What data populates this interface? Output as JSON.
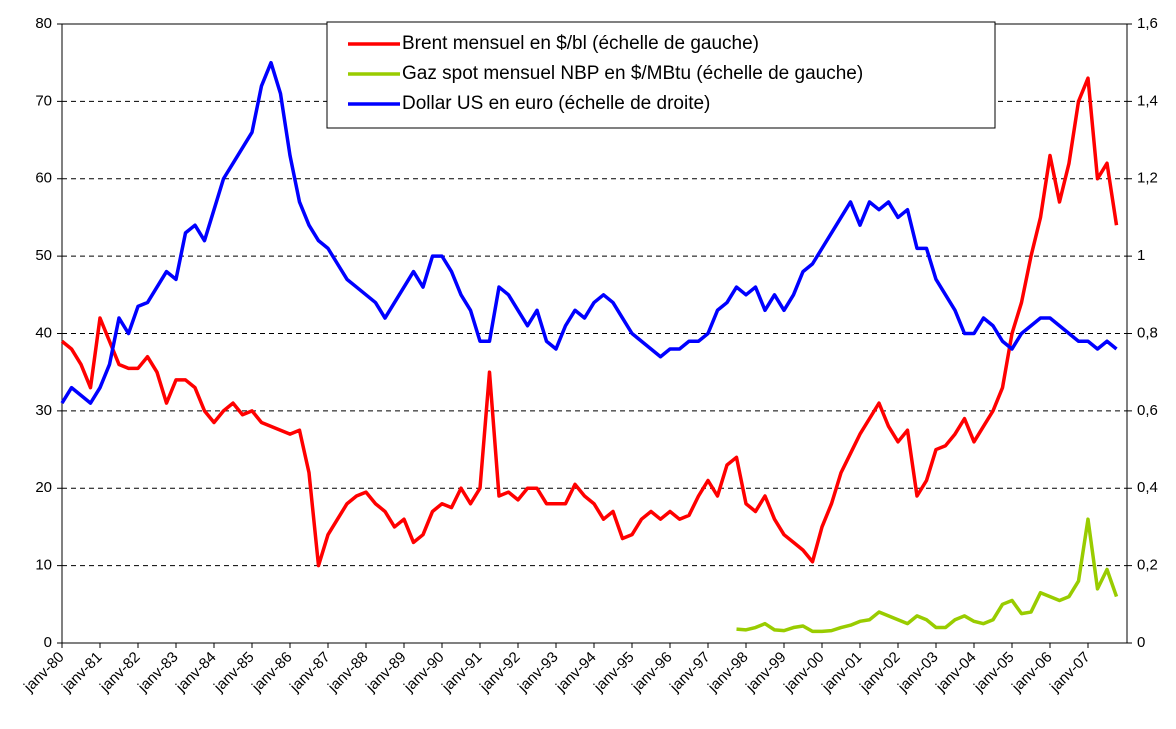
{
  "chart_data": {
    "type": "line",
    "categories": [
      "janv-80",
      null,
      null,
      null,
      "janv-81",
      null,
      null,
      null,
      "janv-82",
      null,
      null,
      null,
      "janv-83",
      null,
      null,
      null,
      "janv-84",
      null,
      null,
      null,
      "janv-85",
      null,
      null,
      null,
      "janv-86",
      null,
      null,
      null,
      "janv-87",
      null,
      null,
      null,
      "janv-88",
      null,
      null,
      null,
      "janv-89",
      null,
      null,
      null,
      "janv-90",
      null,
      null,
      null,
      "janv-91",
      null,
      null,
      null,
      "janv-92",
      null,
      null,
      null,
      "janv-93",
      null,
      null,
      null,
      "janv-94",
      null,
      null,
      null,
      "janv-95",
      null,
      null,
      null,
      "janv-96",
      null,
      null,
      null,
      "janv-97",
      null,
      null,
      null,
      "janv-98",
      null,
      null,
      null,
      "janv-99",
      null,
      null,
      null,
      "janv-00",
      null,
      null,
      null,
      "janv-01",
      null,
      null,
      null,
      "janv-02",
      null,
      null,
      null,
      "janv-03",
      null,
      null,
      null,
      "janv-04",
      null,
      null,
      null,
      "janv-05",
      null,
      null,
      null,
      "janv-06",
      null,
      null,
      null,
      "janv-07",
      null,
      null,
      null
    ],
    "series": [
      {
        "name": "Brent mensuel en $/bl (échelle de gauche)",
        "color": "#ff0000",
        "axis": "y",
        "values": [
          39,
          38,
          36,
          33,
          42,
          39,
          36,
          35.5,
          35.5,
          37,
          35,
          31,
          34,
          34,
          33,
          30,
          28.5,
          30,
          31,
          29.5,
          30,
          28.5,
          28,
          27.5,
          27,
          27.5,
          22,
          10,
          14,
          16,
          18,
          19,
          19.5,
          18,
          17,
          15,
          16,
          13,
          14,
          17,
          18,
          17.5,
          20,
          18,
          20,
          35,
          19,
          19.5,
          18.5,
          20,
          20,
          18,
          18,
          18,
          20.5,
          19,
          18,
          16,
          17,
          13.5,
          14,
          16,
          17,
          16,
          17,
          16,
          16.5,
          19,
          21,
          19,
          23,
          24,
          18,
          17,
          19,
          16,
          14,
          13,
          12,
          10.5,
          15,
          18,
          22,
          24.5,
          27,
          29,
          31,
          28,
          26,
          27.5,
          19,
          21,
          25,
          25.5,
          27,
          29,
          26,
          28,
          30,
          33,
          40,
          44,
          50,
          55,
          63,
          57,
          62,
          70,
          73,
          60,
          62,
          54
        ]
      },
      {
        "name": "Gaz spot mensuel NBP en $/MBtu (échelle de gauche)",
        "color": "#99cc00",
        "axis": "y",
        "values": [
          null,
          null,
          null,
          null,
          null,
          null,
          null,
          null,
          null,
          null,
          null,
          null,
          null,
          null,
          null,
          null,
          null,
          null,
          null,
          null,
          null,
          null,
          null,
          null,
          null,
          null,
          null,
          null,
          null,
          null,
          null,
          null,
          null,
          null,
          null,
          null,
          null,
          null,
          null,
          null,
          null,
          null,
          null,
          null,
          null,
          null,
          null,
          null,
          null,
          null,
          null,
          null,
          null,
          null,
          null,
          null,
          null,
          null,
          null,
          null,
          null,
          null,
          null,
          null,
          null,
          null,
          null,
          null,
          null,
          null,
          null,
          1.8,
          1.7,
          2,
          2.5,
          1.7,
          1.6,
          2,
          2.2,
          1.5,
          1.5,
          1.6,
          2,
          2.3,
          2.8,
          3,
          4,
          3.5,
          3,
          2.5,
          3.5,
          3,
          2,
          2,
          3,
          3.5,
          2.8,
          2.5,
          3,
          5,
          5.5,
          3.8,
          4,
          6.5,
          6,
          5.5,
          6,
          8,
          16,
          7,
          9.5,
          6
        ]
      },
      {
        "name": "Dollar US en euro (échelle de droite)",
        "color": "#0000ff",
        "axis": "y2",
        "values": [
          0.62,
          0.66,
          0.64,
          0.62,
          0.66,
          0.72,
          0.84,
          0.8,
          0.87,
          0.88,
          0.92,
          0.96,
          0.94,
          1.06,
          1.08,
          1.04,
          1.12,
          1.2,
          1.24,
          1.28,
          1.32,
          1.44,
          1.5,
          1.42,
          1.26,
          1.14,
          1.08,
          1.04,
          1.02,
          0.98,
          0.94,
          0.92,
          0.9,
          0.88,
          0.84,
          0.88,
          0.92,
          0.96,
          0.92,
          1,
          1,
          0.96,
          0.9,
          0.86,
          0.78,
          0.78,
          0.92,
          0.9,
          0.86,
          0.82,
          0.86,
          0.78,
          0.76,
          0.82,
          0.86,
          0.84,
          0.88,
          0.9,
          0.88,
          0.84,
          0.8,
          0.78,
          0.76,
          0.74,
          0.76,
          0.76,
          0.78,
          0.78,
          0.8,
          0.86,
          0.88,
          0.92,
          0.9,
          0.92,
          0.86,
          0.9,
          0.86,
          0.9,
          0.96,
          0.98,
          1.02,
          1.06,
          1.1,
          1.14,
          1.08,
          1.14,
          1.12,
          1.14,
          1.1,
          1.12,
          1.02,
          1.02,
          0.94,
          0.9,
          0.86,
          0.8,
          0.8,
          0.84,
          0.82,
          0.78,
          0.76,
          0.8,
          0.82,
          0.84,
          0.84,
          0.82,
          0.8,
          0.78,
          0.78,
          0.76,
          0.78,
          0.76
        ]
      }
    ],
    "ylim": [
      0,
      80
    ],
    "yticks": [
      0,
      10,
      20,
      30,
      40,
      50,
      60,
      70,
      80
    ],
    "y2lim": [
      0,
      1.6
    ],
    "y2ticks": [
      0,
      {
        "value": 0.2,
        "label": "0,2"
      },
      {
        "value": 0.4,
        "label": "0,4"
      },
      {
        "value": 0.6,
        "label": "0,6"
      },
      {
        "value": 0.8,
        "label": "0,8"
      },
      1,
      {
        "value": 1.2,
        "label": "1,2"
      },
      {
        "value": 1.4,
        "label": "1,4"
      },
      {
        "value": 1.6,
        "label": "1,6"
      }
    ],
    "grid": true,
    "legend": "top"
  }
}
